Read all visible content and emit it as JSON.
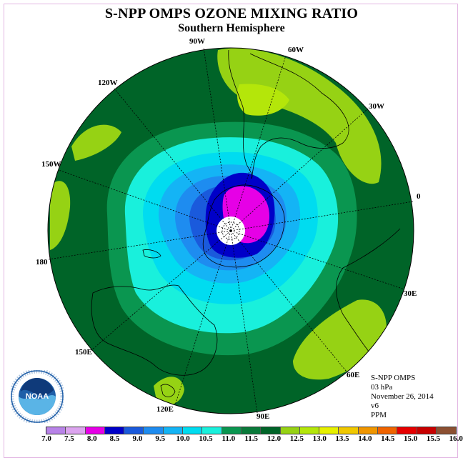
{
  "title": "S-NPP OMPS OZONE MIXING RATIO",
  "subtitle": "Southern Hemisphere",
  "longitude_labels": {
    "lon_90w": "90W",
    "lon_60w": "60W",
    "lon_30w": "30W",
    "lon_0": "0",
    "lon_30e": "30E",
    "lon_60e": "60E",
    "lon_90e": "90E",
    "lon_120e": "120E",
    "lon_150e": "150E",
    "lon_180": "180",
    "lon_150w": "150W",
    "lon_120w": "120W"
  },
  "info": {
    "instrument": "S-NPP OMPS",
    "level": "03 hPa",
    "date": "November 26, 2014",
    "version": "v6",
    "units": "PPM"
  },
  "logo": {
    "text": "NOAA"
  },
  "colorbar": {
    "colors": [
      "#b883e8",
      "#dca4ef",
      "#e600e6",
      "#0000c8",
      "#1a5adc",
      "#1e8cf0",
      "#14b4f5",
      "#00dcf0",
      "#19f0dc",
      "#0a9650",
      "#0a7a3a",
      "#006428",
      "#96d214",
      "#b4e60a",
      "#e6f000",
      "#f0c800",
      "#f09600",
      "#f06400",
      "#e60000",
      "#c80000",
      "#8c5032"
    ],
    "ticks": [
      "7.0",
      "7.5",
      "8.0",
      "8.5",
      "9.0",
      "9.5",
      "10.0",
      "10.5",
      "11.0",
      "11.5",
      "12.0",
      "12.5",
      "13.0",
      "13.5",
      "14.0",
      "14.5",
      "15.0",
      "15.5",
      "16.0"
    ]
  }
}
